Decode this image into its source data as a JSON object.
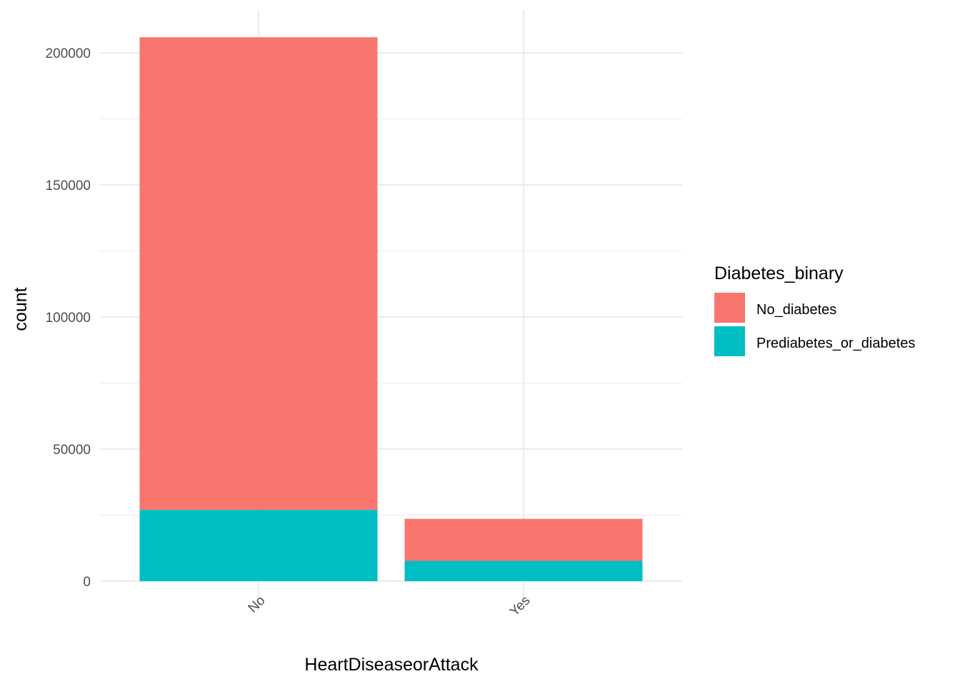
{
  "chart_data": {
    "type": "bar",
    "stacked": true,
    "title": "",
    "xlabel": "HeartDiseaseorAttack",
    "ylabel": "count",
    "categories": [
      "No",
      "Yes"
    ],
    "ylim": [
      0,
      206000
    ],
    "yticks": [
      0,
      50000,
      100000,
      150000,
      200000
    ],
    "y_minor_ticks": [
      25000,
      75000,
      125000,
      175000
    ],
    "grid": true,
    "legend": {
      "title": "Diabetes_binary",
      "position": "right"
    },
    "series": [
      {
        "name": "Prediabetes_or_diabetes",
        "color": "#00BFC4",
        "values": [
          27000,
          7700
        ]
      },
      {
        "name": "No_diabetes",
        "color": "#F8766D",
        "values": [
          178900,
          15900
        ]
      }
    ],
    "legend_order": [
      "No_diabetes",
      "Prediabetes_or_diabetes"
    ]
  }
}
